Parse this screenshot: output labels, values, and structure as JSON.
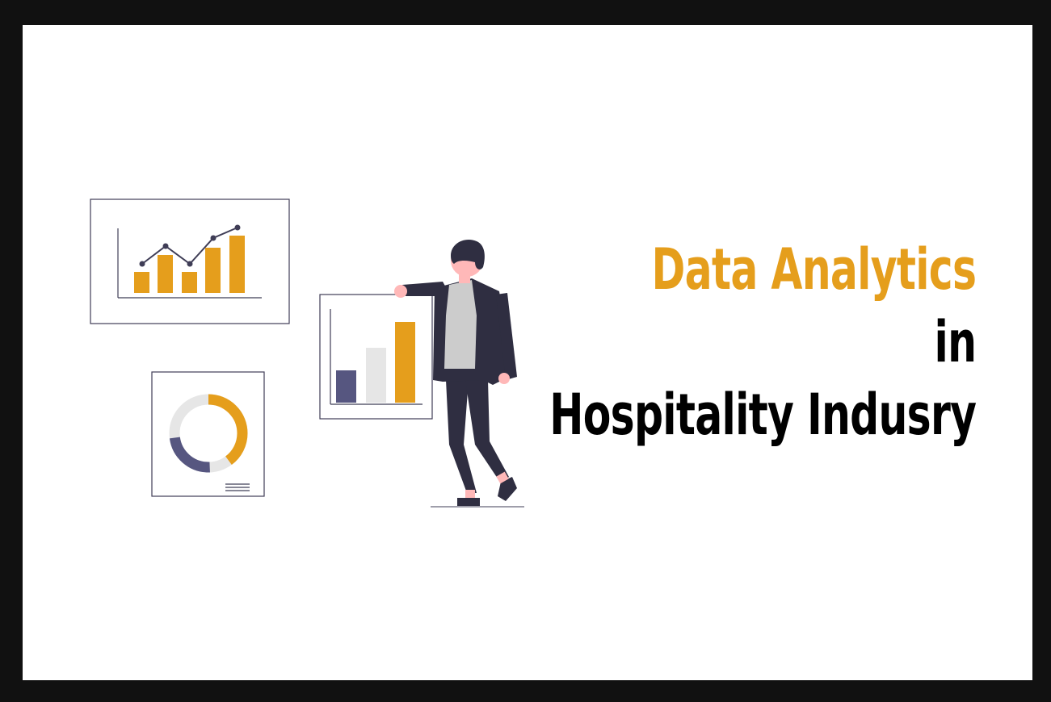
{
  "headline": {
    "line1": "Data Analytics",
    "line2": "in",
    "line3": "Hospitality Indusry"
  },
  "colors": {
    "background_frame": "#111111",
    "canvas": "#ffffff",
    "accent": "#E59E1C",
    "text_dark": "#000000",
    "navy": "#565680",
    "light_grey": "#E6E6E6",
    "suit": "#2F2E41",
    "skin": "#FFB8B8",
    "shirt": "#CCCCCC"
  },
  "illustration": {
    "icons": [
      "line-bar-chart-icon",
      "bar-chart-icon",
      "donut-chart-icon",
      "businessman-icon"
    ]
  }
}
